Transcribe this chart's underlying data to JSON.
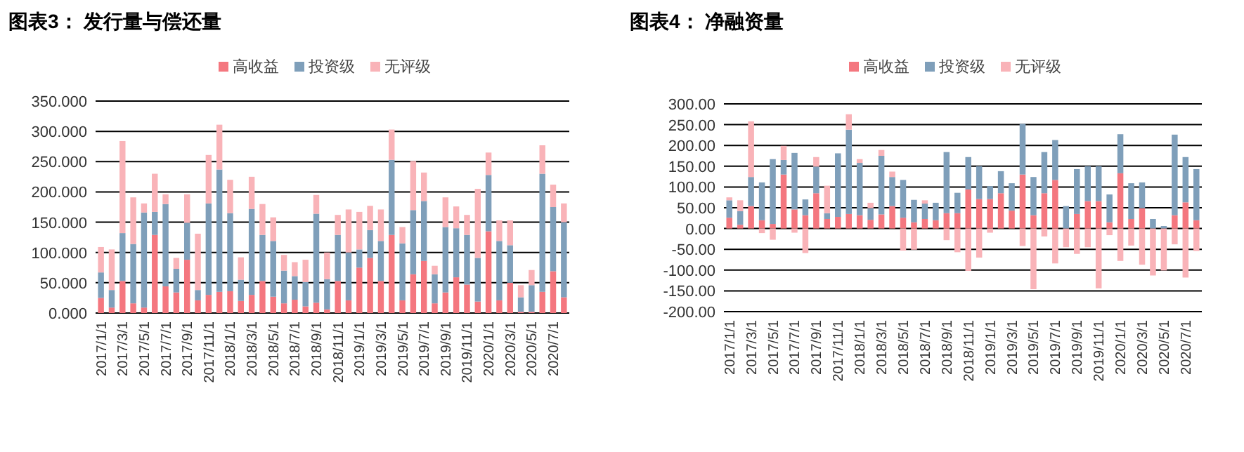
{
  "chart_data": [
    {
      "type": "bar",
      "title": "图表3： 发行量与偿还量",
      "stacked": true,
      "grid": "y",
      "legend": "top",
      "categories": [
        "2017/1/1",
        null,
        "2017/3/1",
        null,
        "2017/5/1",
        null,
        "2017/7/1",
        null,
        "2017/9/1",
        null,
        "2017/11/1",
        null,
        "2018/1/1",
        null,
        "2018/3/1",
        null,
        "2018/5/1",
        null,
        "2018/7/1",
        null,
        "2018/9/1",
        null,
        "2018/11/1",
        null,
        "2019/1/1",
        null,
        "2019/3/1",
        null,
        "2019/5/1",
        null,
        "2019/7/1",
        null,
        "2019/9/1",
        null,
        "2019/11/1",
        null,
        "2020/1/1",
        null,
        "2020/3/1",
        null,
        "2020/5/1",
        null,
        "2020/7/1",
        null
      ],
      "ylim": [
        0,
        350
      ],
      "yticks": [
        {
          "value": 0,
          "label": "0.000"
        },
        {
          "value": 50,
          "label": "50.000"
        },
        {
          "value": 100,
          "label": "100.000"
        },
        {
          "value": 150,
          "label": "150.000"
        },
        {
          "value": 200,
          "label": "200.000"
        },
        {
          "value": 250,
          "label": "250.000"
        },
        {
          "value": 300,
          "label": "300.000"
        },
        {
          "value": 350,
          "label": "350.000"
        }
      ],
      "series": [
        {
          "name": "高收益",
          "color": "#f4777f",
          "values": [
            25,
            9,
            53,
            16,
            9,
            129,
            44,
            34,
            88,
            21,
            30,
            35,
            36,
            20,
            30,
            53,
            27,
            16,
            22,
            11,
            17,
            6,
            53,
            21,
            75,
            91,
            53,
            129,
            21,
            64,
            86,
            16,
            34,
            59,
            47,
            19,
            135,
            21,
            50,
            2,
            2,
            35,
            69,
            26
          ]
        },
        {
          "name": "投资级",
          "color": "#7f9fba",
          "values": [
            42,
            29,
            79,
            98,
            157,
            38,
            136,
            39,
            61,
            17,
            151,
            202,
            129,
            35,
            142,
            76,
            92,
            54,
            39,
            40,
            147,
            50,
            76,
            79,
            30,
            46,
            66,
            124,
            94,
            106,
            99,
            48,
            108,
            81,
            82,
            72,
            93,
            98,
            62,
            24,
            44,
            195,
            106,
            124
          ]
        },
        {
          "name": "无评级",
          "color": "#f9b3b8",
          "values": [
            42,
            67,
            152,
            77,
            15,
            63,
            16,
            18,
            47,
            93,
            80,
            74,
            55,
            37,
            53,
            51,
            39,
            26,
            23,
            37,
            31,
            44,
            33,
            71,
            62,
            40,
            52,
            50,
            27,
            81,
            47,
            14,
            49,
            36,
            33,
            114,
            37,
            34,
            41,
            20,
            25,
            47,
            37,
            31
          ]
        }
      ]
    },
    {
      "type": "bar",
      "title": "图表4： 净融资量",
      "stacked": true,
      "grid": "y",
      "legend": "top",
      "categories": [
        "2017/1/1",
        null,
        "2017/3/1",
        null,
        "2017/5/1",
        null,
        "2017/7/1",
        null,
        "2017/9/1",
        null,
        "2017/11/1",
        null,
        "2018/1/1",
        null,
        "2018/3/1",
        null,
        "2018/5/1",
        null,
        "2018/7/1",
        null,
        "2018/9/1",
        null,
        "2018/11/1",
        null,
        "2019/1/1",
        null,
        "2019/3/1",
        null,
        "2019/5/1",
        null,
        "2019/7/1",
        null,
        "2019/9/1",
        null,
        "2019/11/1",
        null,
        "2020/1/1",
        null,
        "2020/3/1",
        null,
        "2020/5/1",
        null,
        "2020/7/1",
        null
      ],
      "ylim": [
        -200,
        300
      ],
      "yticks": [
        {
          "value": -200,
          "label": "-200.00"
        },
        {
          "value": -150,
          "label": "-150.00"
        },
        {
          "value": -100,
          "label": "-100.00"
        },
        {
          "value": -50,
          "label": "-50.00"
        },
        {
          "value": 0,
          "label": "0.00"
        },
        {
          "value": 50,
          "label": "50.00"
        },
        {
          "value": 100,
          "label": "100.00"
        },
        {
          "value": 150,
          "label": "150.00"
        },
        {
          "value": 200,
          "label": "200.00"
        },
        {
          "value": 250,
          "label": "250.00"
        },
        {
          "value": 300,
          "label": "300.00"
        }
      ],
      "series": [
        {
          "name": "高收益",
          "color": "#f4777f",
          "values": [
            26,
            9,
            54,
            20,
            11,
            130,
            46,
            32,
            85,
            23,
            28,
            35,
            32,
            21,
            34,
            54,
            26,
            15,
            23,
            20,
            37,
            37,
            94,
            71,
            71,
            85,
            43,
            130,
            32,
            85,
            117,
            0,
            35,
            66,
            66,
            15,
            133,
            23,
            49,
            0,
            0,
            32,
            63,
            20
          ]
        },
        {
          "name": "投资级",
          "color": "#7f9fba",
          "values": [
            42,
            33,
            70,
            91,
            156,
            35,
            136,
            38,
            64,
            14,
            153,
            203,
            126,
            28,
            141,
            70,
            91,
            54,
            37,
            42,
            147,
            49,
            78,
            79,
            31,
            53,
            66,
            122,
            92,
            99,
            96,
            54,
            108,
            84,
            84,
            67,
            94,
            86,
            62,
            23,
            6,
            194,
            109,
            123
          ]
        },
        {
          "name": "无评级",
          "color": "#f9b3b8",
          "values": [
            7,
            26,
            134,
            -11,
            -27,
            34,
            -10,
            -59,
            23,
            66,
            null,
            37,
            9,
            13,
            14,
            13,
            -53,
            -51,
            8,
            null,
            -28,
            -57,
            -102,
            -70,
            -10,
            null,
            null,
            -42,
            -146,
            -19,
            -84,
            -45,
            -61,
            -45,
            -144,
            -16,
            -78,
            -41,
            -87,
            -113,
            -101,
            -38,
            -118,
            -54
          ]
        }
      ]
    }
  ]
}
